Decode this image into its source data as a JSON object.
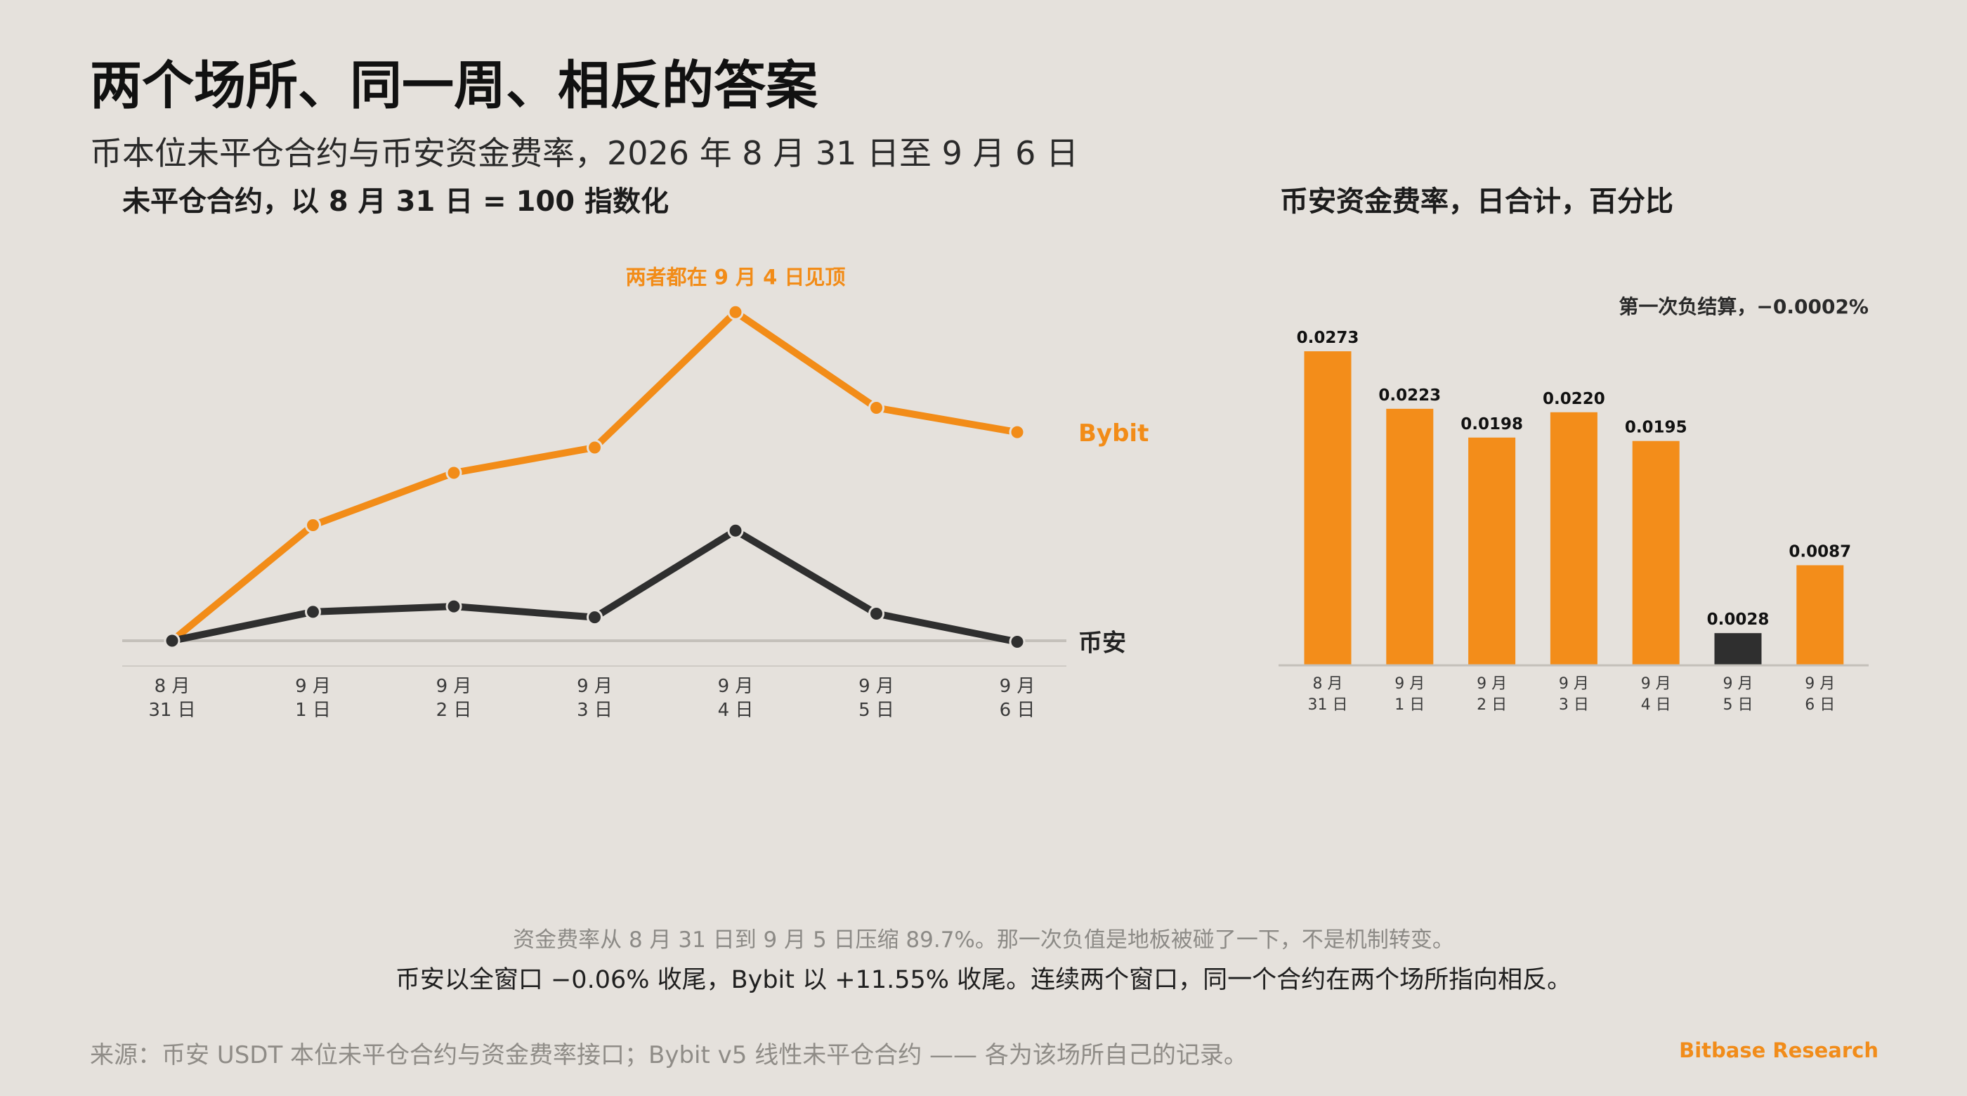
{
  "title": "两个场所、同一周、相反的答案",
  "subtitle": "币本位未平仓合约与币安资金费率，2026 年 8 月 31 日至 9 月 6 日",
  "colors": {
    "accent": "#f28c18",
    "dark": "#2f2f2f",
    "background": "#e5e1dc",
    "muted": "#8c8a86"
  },
  "chart_data": [
    {
      "type": "line",
      "title": "未平仓合约，以 8 月 31 日 = 100 指数化",
      "categories": [
        "8 月|31 日",
        "9 月|1 日",
        "9 月|2 日",
        "9 月|3 日",
        "9 月|4 日",
        "9 月|5 日",
        "9 月|6 日"
      ],
      "series": [
        {
          "name": "Bybit",
          "values": [
            100,
            106.4,
            109.3,
            110.7,
            118.2,
            112.9,
            111.55
          ]
        },
        {
          "name": "币安",
          "values": [
            100,
            101.6,
            101.9,
            101.3,
            106.1,
            101.5,
            99.94
          ]
        }
      ],
      "ylim": [
        98.5,
        118.5
      ],
      "grid": false,
      "baseline": 100,
      "annotation": "两者都在 9 月 4 日见顶"
    },
    {
      "type": "bar",
      "title": "币安资金费率，日合计，百分比",
      "categories": [
        "8 月|31 日",
        "9 月|1 日",
        "9 月|2 日",
        "9 月|3 日",
        "9 月|4 日",
        "9 月|5 日",
        "9 月|6 日"
      ],
      "values": [
        0.0273,
        0.0223,
        0.0198,
        0.022,
        0.0195,
        0.0028,
        0.0087
      ],
      "value_labels": [
        "0.0273",
        "0.0223",
        "0.0198",
        "0.0220",
        "0.0195",
        "0.0028",
        "0.0087"
      ],
      "highlight_index": 5,
      "ylim": [
        0,
        0.0273
      ],
      "annotation": "第一次负结算，−0.0002%"
    }
  ],
  "notes": {
    "line1": "资金费率从 8 月 31 日到 9 月 5 日压缩 89.7%。那一次负值是地板被碰了一下，不是机制转变。",
    "line2": "币安以全窗口 −0.06% 收尾，Bybit 以 +11.55% 收尾。连续两个窗口，同一个合约在两个场所指向相反。"
  },
  "footer": {
    "source": "来源：币安 USDT 本位未平仓合约与资金费率接口；Bybit v5 线性未平仓合约 —— 各为该场所自己的记录。",
    "brand": "Bitbase Research"
  }
}
